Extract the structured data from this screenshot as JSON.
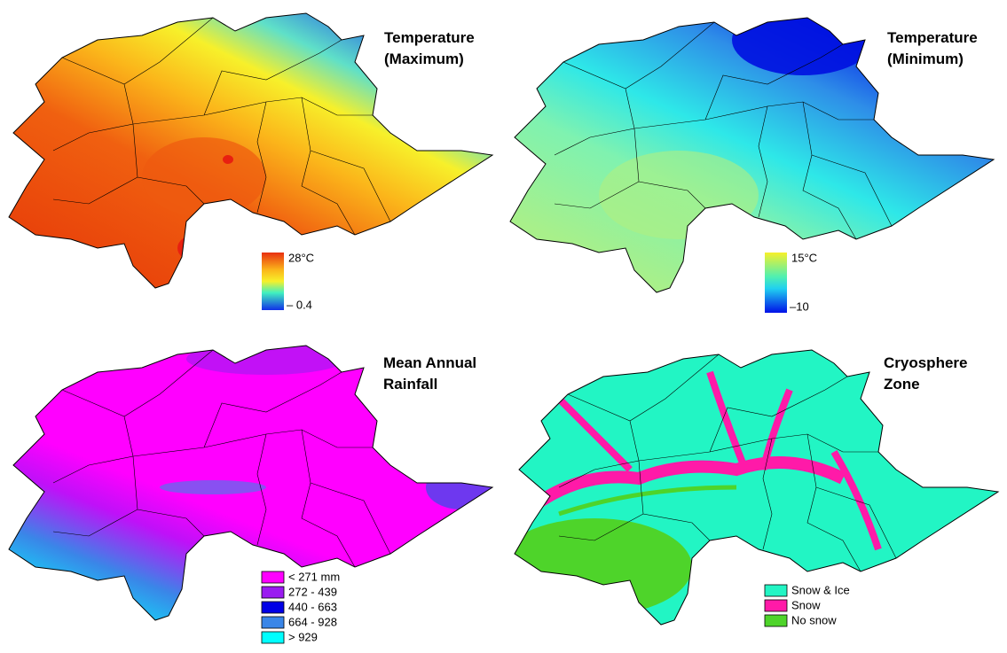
{
  "panels": [
    {
      "title": [
        "Temperature",
        "(Maximum)"
      ],
      "colorbar": {
        "max_label": "28°C",
        "min_label": "– 0.4"
      }
    },
    {
      "title": [
        "Temperature",
        "(Minimum)"
      ],
      "colorbar": {
        "max_label": "15°C",
        "min_label": "–10"
      }
    },
    {
      "title": [
        "Mean Annual",
        "Rainfall"
      ],
      "legend": [
        {
          "label": "< 271 mm",
          "color": "#ff00ff"
        },
        {
          "label": "272 - 439",
          "color": "#9a1cf0"
        },
        {
          "label": "440 - 663",
          "color": "#0000e6"
        },
        {
          "label": "664 - 928",
          "color": "#3a86e8"
        },
        {
          "label": "> 929",
          "color": "#00ffff"
        }
      ]
    },
    {
      "title": [
        "Cryosphere",
        "Zone"
      ],
      "legend": [
        {
          "label": "Snow & Ice",
          "color": "#22f5c4"
        },
        {
          "label": "Snow",
          "color": "#ff1aa8"
        },
        {
          "label": "No snow",
          "color": "#4ed42a"
        }
      ]
    }
  ]
}
